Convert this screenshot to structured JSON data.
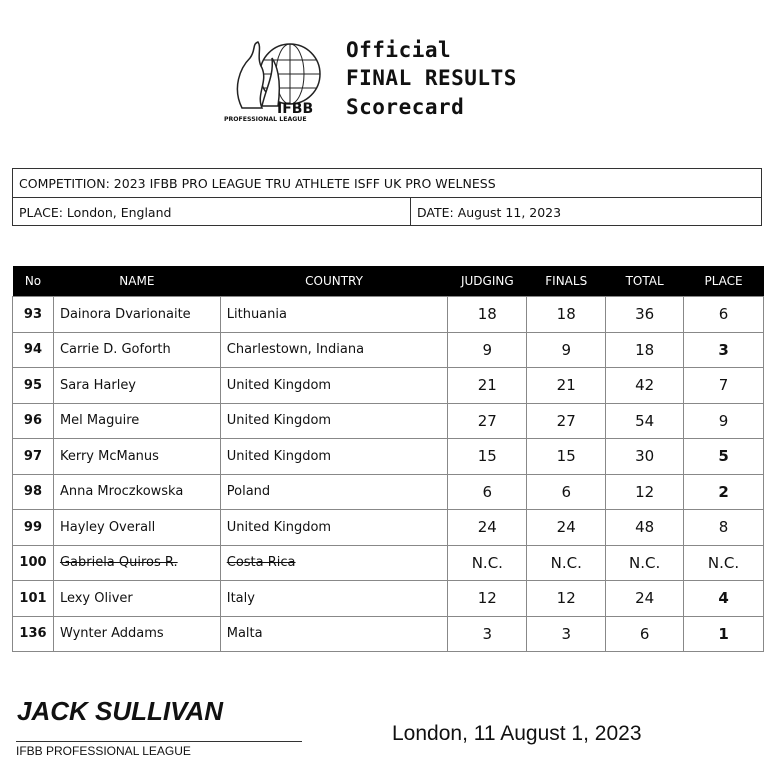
{
  "header": {
    "logo_text": "IFBB PROFESSIONAL LEAGUE",
    "line1": "Official",
    "line2": "FINAL RESULTS",
    "line3": "Scorecard"
  },
  "info": {
    "competition": "COMPETITION:  2023 IFBB PRO LEAGUE TRU ATHLETE ISFF UK PRO WELNESS",
    "place": "PLACE: London, England",
    "date": "DATE:   August 11, 2023"
  },
  "table": {
    "columns": [
      "No",
      "NAME",
      "COUNTRY",
      "JUDGING",
      "FINALS",
      "TOTAL",
      "PLACE"
    ],
    "rows": [
      {
        "no": "93",
        "name": "Dainora Dvarionaite",
        "country": "Lithuania",
        "judging": "18",
        "finals": "18",
        "total": "36",
        "place": "6",
        "bold": false,
        "struck": false
      },
      {
        "no": "94",
        "name": "Carrie D. Goforth",
        "country": "Charlestown, Indiana",
        "judging": "9",
        "finals": "9",
        "total": "18",
        "place": "3",
        "bold": true,
        "struck": false
      },
      {
        "no": "95",
        "name": "Sara Harley",
        "country": "United Kingdom",
        "judging": "21",
        "finals": "21",
        "total": "42",
        "place": "7",
        "bold": false,
        "struck": false
      },
      {
        "no": "96",
        "name": "Mel Maguire",
        "country": "United Kingdom",
        "judging": "27",
        "finals": "27",
        "total": "54",
        "place": "9",
        "bold": false,
        "struck": false
      },
      {
        "no": "97",
        "name": "Kerry McManus",
        "country": "United Kingdom",
        "judging": "15",
        "finals": "15",
        "total": "30",
        "place": "5",
        "bold": true,
        "struck": false
      },
      {
        "no": "98",
        "name": "Anna Mroczkowska",
        "country": "Poland",
        "judging": "6",
        "finals": "6",
        "total": "12",
        "place": "2",
        "bold": true,
        "struck": false
      },
      {
        "no": "99",
        "name": "Hayley Overall",
        "country": "United Kingdom",
        "judging": "24",
        "finals": "24",
        "total": "48",
        "place": "8",
        "bold": false,
        "struck": false
      },
      {
        "no": "100",
        "name": "Gabriela Quiros R.",
        "country": "Costa Rica",
        "judging": "N.C.",
        "finals": "N.C.",
        "total": "N.C.",
        "place": "N.C.",
        "bold": false,
        "struck": true
      },
      {
        "no": "101",
        "name": "Lexy Oliver",
        "country": "Italy",
        "judging": "12",
        "finals": "12",
        "total": "24",
        "place": "4",
        "bold": true,
        "struck": false
      },
      {
        "no": "136",
        "name": "Wynter Addams",
        "country": "Malta",
        "judging": "3",
        "finals": "3",
        "total": "6",
        "place": "1",
        "bold": true,
        "struck": false
      }
    ]
  },
  "footer": {
    "signature": "JACK SULLIVAN",
    "org": "IFBB PROFESSIONAL LEAGUE",
    "place_date": "London,  11 August 1, 2023"
  }
}
